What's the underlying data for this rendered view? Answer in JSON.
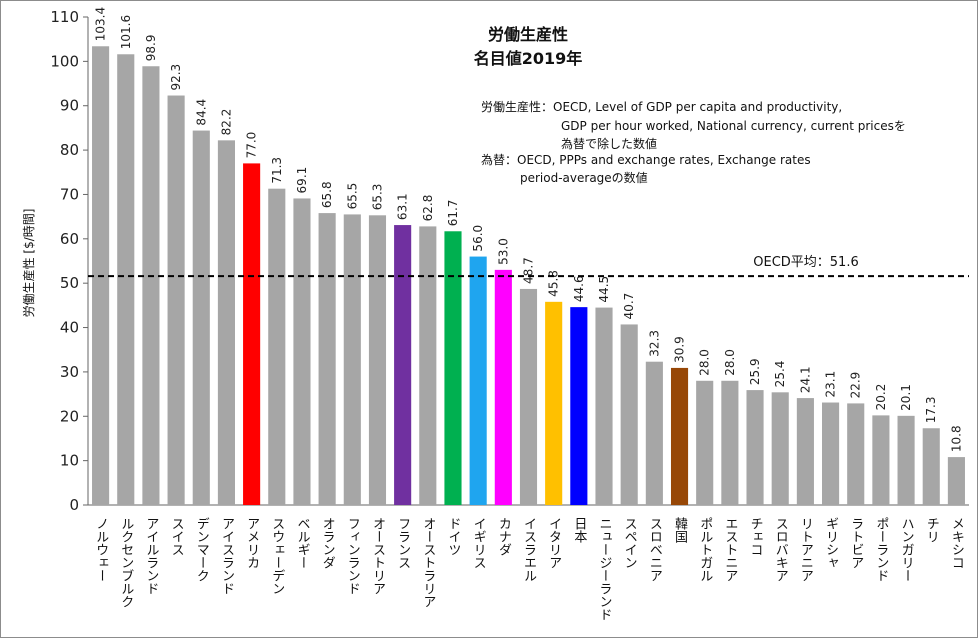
{
  "chart_data": {
    "type": "bar",
    "title": "労働生産性",
    "subtitle": "名目値2019年",
    "ylabel": "労働生産性 [$/時間]",
    "ylim": [
      0,
      110
    ],
    "yticks": [
      0,
      10,
      20,
      30,
      40,
      50,
      60,
      70,
      80,
      90,
      100,
      110
    ],
    "categories": [
      "ノルウェー",
      "ルクセンブルク",
      "アイルランド",
      "スイス",
      "デンマーク",
      "アイスランド",
      "アメリカ",
      "スウェーデン",
      "ベルギー",
      "オランダ",
      "フィンランド",
      "オーストリア",
      "フランス",
      "オーストラリア",
      "ドイツ",
      "イギリス",
      "カナダ",
      "イスラエル",
      "イタリア",
      "日本",
      "ニュージーランド",
      "スペイン",
      "スロベニア",
      "韓国",
      "ポルトガル",
      "エストニア",
      "チェコ",
      "スロバキア",
      "リトアニア",
      "ギリシャ",
      "ラトビア",
      "ポーランド",
      "ハンガリー",
      "チリ",
      "メキシコ"
    ],
    "values": [
      103.4,
      101.6,
      98.9,
      92.3,
      84.4,
      82.2,
      77.0,
      71.3,
      69.1,
      65.8,
      65.5,
      65.3,
      63.1,
      62.8,
      61.7,
      56.0,
      53.0,
      48.7,
      45.8,
      44.6,
      44.5,
      40.7,
      32.3,
      30.9,
      28.0,
      28.0,
      25.9,
      25.4,
      24.1,
      23.1,
      22.9,
      20.2,
      20.1,
      17.3,
      10.8
    ],
    "value_labels": [
      "103.4",
      "101.6",
      "98.9",
      "92.3",
      "84.4",
      "82.2",
      "77.0",
      "71.3",
      "69.1",
      "65.8",
      "65.5",
      "65.3",
      "63.1",
      "62.8",
      "61.7",
      "56.0",
      "53.0",
      "48.7",
      "45.8",
      "44.6",
      "44.5",
      "40.7",
      "32.3",
      "30.9",
      "28.0",
      "28.0",
      "25.9",
      "25.4",
      "24.1",
      "23.1",
      "22.9",
      "20.2",
      "20.1",
      "17.3",
      "10.8"
    ],
    "colors": [
      "#a6a6a6",
      "#a6a6a6",
      "#a6a6a6",
      "#a6a6a6",
      "#a6a6a6",
      "#a6a6a6",
      "#ff0000",
      "#a6a6a6",
      "#a6a6a6",
      "#a6a6a6",
      "#a6a6a6",
      "#a6a6a6",
      "#7030a0",
      "#a6a6a6",
      "#00b050",
      "#1fa5ef",
      "#ff00ff",
      "#a6a6a6",
      "#ffc000",
      "#0000ff",
      "#a6a6a6",
      "#a6a6a6",
      "#a6a6a6",
      "#974706",
      "#a6a6a6",
      "#a6a6a6",
      "#a6a6a6",
      "#a6a6a6",
      "#a6a6a6",
      "#a6a6a6",
      "#a6a6a6",
      "#a6a6a6",
      "#a6a6a6",
      "#a6a6a6",
      "#a6a6a6"
    ],
    "reference_line": {
      "value": 51.6,
      "label": "OECD平均：51.6",
      "style": "dashed",
      "color": "#000000"
    },
    "notes": [
      "労働生産性：OECD, Level of GDP per capita and productivity,",
      "GDP per hour worked, National currency, current pricesを",
      "為替で除した数値",
      "為替：OECD, PPPs and exchange rates, Exchange rates",
      "period-averageの数値"
    ],
    "grid": false,
    "legend": "none"
  }
}
